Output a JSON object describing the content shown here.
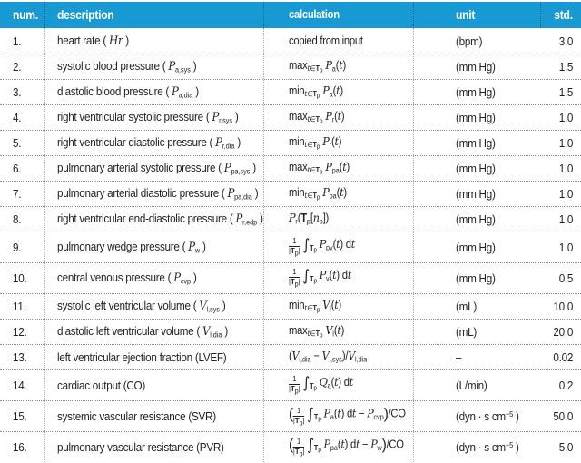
{
  "colors": {
    "header_bg": "#1799d3",
    "header_text": "#ffffff",
    "body_text": "#222222",
    "dotted_line": "#8f8f8f"
  },
  "table": {
    "columns": [
      "num.",
      "description",
      "calculation",
      "unit",
      "std."
    ],
    "rows": [
      {
        "num": "1.",
        "tall": false,
        "description_html": "heart rate ( <i>Hr</i> )",
        "calculation_html": "copied from input",
        "unit_html": "(bpm)",
        "std": "3.0"
      },
      {
        "num": "2.",
        "tall": false,
        "description_html": "systolic blood pressure ( <i>P</i><sub>a,sys</sub> )",
        "calculation_html": "max<sub><i>t</i>∈<b>T</b><sub>p</sub></sub> <i>P</i><sub>a</sub>(<i>t</i>)",
        "unit_html": "(mm Hg)",
        "std": "1.5"
      },
      {
        "num": "3.",
        "tall": false,
        "description_html": "diastolic blood pressure ( <i>P</i><sub>a,dia</sub> )",
        "calculation_html": "min<sub><i>t</i>∈<b>T</b><sub>p</sub></sub> <i>P</i><sub>a</sub>(<i>t</i>)",
        "unit_html": "(mm Hg)",
        "std": "1.5"
      },
      {
        "num": "4.",
        "tall": false,
        "description_html": "right ventricular systolic pressure ( <i>P</i><sub>r,sys</sub> )",
        "calculation_html": "max<sub><i>t</i>∈<b>T</b><sub>p</sub></sub> <i>P</i><sub>r</sub>(<i>t</i>)",
        "unit_html": "(mm Hg)",
        "std": "1.0"
      },
      {
        "num": "5.",
        "tall": false,
        "description_html": "right ventricular diastolic pressure ( <i>P</i><sub>r,dia</sub> )",
        "calculation_html": "min<sub><i>t</i>∈<b>T</b><sub>p</sub></sub> <i>P</i><sub>r</sub>(<i>t</i>)",
        "unit_html": "(mm Hg)",
        "std": "1.0"
      },
      {
        "num": "6.",
        "tall": false,
        "description_html": "pulmonary arterial systolic pressure ( <i>P</i><sub>pa,sys</sub> )",
        "calculation_html": "max<sub><i>t</i>∈<b>T</b><sub>p</sub></sub> <i>P</i><sub>pa</sub>(<i>t</i>)",
        "unit_html": "(mm Hg)",
        "std": "1.0"
      },
      {
        "num": "7.",
        "tall": false,
        "description_html": "pulmonary arterial diastolic pressure ( <i>P</i><sub>pa,dia</sub> )",
        "calculation_html": "min<sub><i>t</i>∈<b>T</b><sub>p</sub></sub> <i>P</i><sub>pa</sub>(<i>t</i>)",
        "unit_html": "(mm Hg)",
        "std": "1.0"
      },
      {
        "num": "8.",
        "tall": false,
        "description_html": "right ventricular end-diastolic pressure ( <i>P</i><sub>r,edp</sub> )",
        "calculation_html": "<i>P</i><sub>r</sub>(<b>T</b><sub>p</sub>[<i>n</i><sub>p</sub>])",
        "unit_html": "(mm Hg)",
        "std": "1.0"
      },
      {
        "num": "9.",
        "tall": true,
        "description_html": "pulmonary wedge pressure ( <i>P</i><sub>w</sub> )",
        "calculation_html": "<span class='frac'><span class='fn'>1</span><span class='fd'>|<b>T</b><sub>p</sub>|</span></span><span class='int'>∫</span><sub class='il'><b>T</b><sub>p</sub></sub><i>P</i><sub>pv</sub>(<i>t</i>) d<i>t</i>",
        "unit_html": "(mm Hg)",
        "std": "1.0"
      },
      {
        "num": "10.",
        "tall": true,
        "description_html": "central venous pressure ( <i>P</i><sub>cvp</sub> )",
        "calculation_html": "<span class='frac'><span class='fn'>1</span><span class='fd'>|<b>T</b><sub>p</sub>|</span></span><span class='int'>∫</span><sub class='il'><b>T</b><sub>p</sub></sub><i>P</i><sub>v</sub>(<i>t</i>) d<i>t</i>",
        "unit_html": "(mm Hg)",
        "std": "0.5"
      },
      {
        "num": "11.",
        "tall": false,
        "description_html": "systolic left ventricular volume ( <i>V</i><sub>l,sys</sub> )",
        "calculation_html": "min<sub><i>t</i>∈<b>T</b><sub>p</sub></sub> <i>V</i><sub>l</sub>(<i>t</i>)",
        "unit_html": "(mL)",
        "std": "10.0"
      },
      {
        "num": "12.",
        "tall": false,
        "description_html": "diastolic left ventricular volume ( <i>V</i><sub>l,dia</sub> )",
        "calculation_html": "max<sub><i>t</i>∈<b>T</b><sub>p</sub></sub> <i>V</i><sub>l</sub>(<i>t</i>)",
        "unit_html": "(mL)",
        "std": "20.0"
      },
      {
        "num": "13.",
        "tall": false,
        "description_html": "left ventricular ejection fraction (LVEF)",
        "calculation_html": "(<i>V</i><sub>l,dia</sub> − <i>V</i><sub>l,sys</sub>)/<i>V</i><sub>l,dia</sub>",
        "unit_html": "–",
        "std": "0.02"
      },
      {
        "num": "14.",
        "tall": true,
        "description_html": "cardiac output (CO)",
        "calculation_html": "<span class='frac'><span class='fn'>1</span><span class='fd'>|<b>T</b><sub>p</sub>|</span></span><span class='int'>∫</span><sub class='il'><b>T</b><sub>p</sub></sub><i>Q</i><sub>a</sub>(<i>t</i>) d<i>t</i>",
        "unit_html": "(L/min)",
        "std": "0.2"
      },
      {
        "num": "15.",
        "tall": true,
        "description_html": "systemic vascular resistance (SVR)",
        "calculation_html": "<span class='bp'>(</span><span class='frac'><span class='fn'>1</span><span class='fd'>|<b>T</b><sub>p</sub>|</span></span><span class='int'>∫</span><sub class='il'><b>T</b><sub>p</sub></sub><i>P</i><sub>a</sub>(<i>t</i>) d<i>t</i> − <i>P</i><sub>cvp</sub><span class='bp'>)</span>/CO",
        "unit_html": "(dyn · s cm<sup class='su'>−5</sup> )",
        "std": "50.0"
      },
      {
        "num": "16.",
        "tall": true,
        "description_html": "pulmonary vascular resistance (PVR)",
        "calculation_html": "<span class='bp'>(</span><span class='frac'><span class='fn'>1</span><span class='fd'>|<b>T</b><sub>p</sub>|</span></span><span class='int'>∫</span><sub class='il'><b>T</b><sub>p</sub></sub><i>P</i><sub>pa</sub>(<i>t</i>) d<i>t</i> − <i>P</i><sub>w</sub><span class='bp'>)</span>/CO",
        "unit_html": "(dyn · s cm<sup class='su'>−5</sup> )",
        "std": "5.0"
      }
    ]
  }
}
